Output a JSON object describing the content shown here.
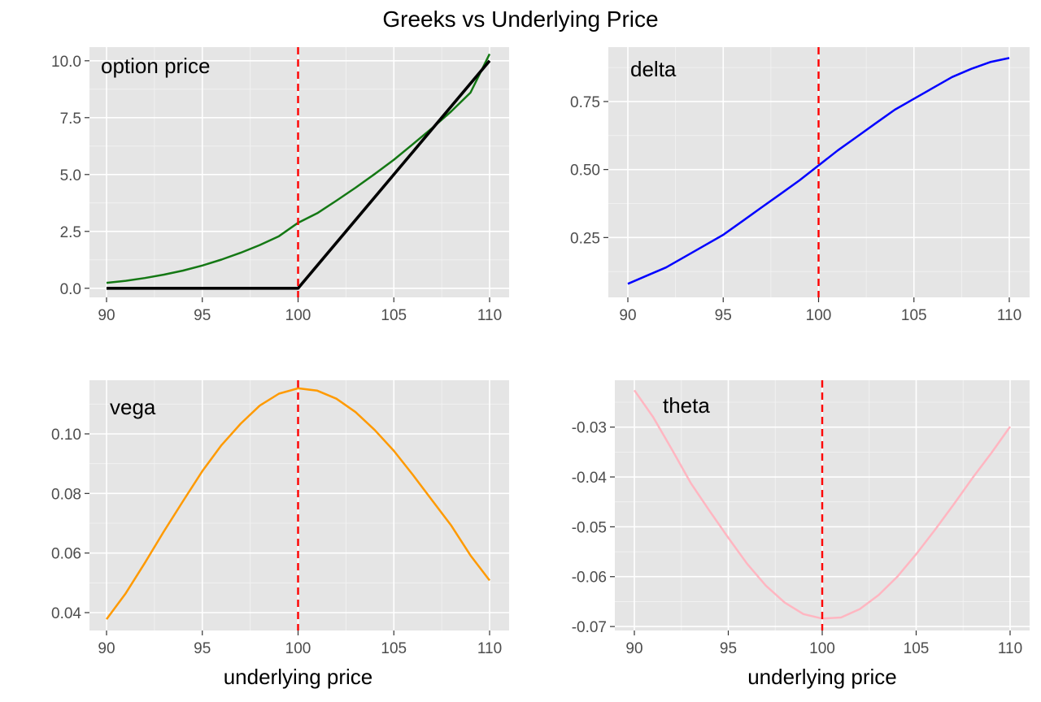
{
  "title": "Greeks vs Underlying Price",
  "colors": {
    "strike_line": "#ff0000",
    "option_price": "#147814",
    "payoff": "#000000",
    "delta": "#0000ff",
    "vega": "#ff9a00",
    "theta": "#ffb6c1"
  },
  "chart_data": [
    {
      "type": "line",
      "label": "option price",
      "xlabel": "",
      "xlim": [
        90,
        110
      ],
      "ylim": [
        -0.4,
        10.6
      ],
      "x_ticks": [
        90,
        95,
        100,
        105,
        110
      ],
      "y_ticks": [
        0,
        2.5,
        5,
        7.5,
        10
      ],
      "y_tick_labels": [
        "0.0",
        "2.5",
        "5.0",
        "7.5",
        "10.0"
      ],
      "vline_x": 100,
      "series": [
        {
          "x": [
            90,
            91,
            92,
            93,
            94,
            95,
            96,
            97,
            98,
            99,
            100,
            101,
            102,
            103,
            104,
            105,
            106,
            107,
            108,
            109,
            110
          ],
          "values": [
            0.24,
            0.33,
            0.45,
            0.6,
            0.78,
            1.0,
            1.26,
            1.56,
            1.9,
            2.29,
            2.88,
            3.3,
            3.85,
            4.42,
            5.02,
            5.65,
            6.34,
            7.04,
            7.78,
            8.6,
            10.3
          ],
          "color": "#147814",
          "width": 2.5
        },
        {
          "x": [
            90,
            100,
            110
          ],
          "values": [
            0,
            0,
            10
          ],
          "color": "#000000",
          "width": 3.6
        }
      ]
    },
    {
      "type": "line",
      "label": "delta",
      "xlabel": "",
      "xlim": [
        90,
        110
      ],
      "ylim": [
        0.03,
        0.95
      ],
      "x_ticks": [
        90,
        95,
        100,
        105,
        110
      ],
      "y_ticks": [
        0.25,
        0.5,
        0.75
      ],
      "y_tick_labels": [
        "0.25",
        "0.50",
        "0.75"
      ],
      "vline_x": 100,
      "series": [
        {
          "x": [
            90,
            91,
            92,
            93,
            94,
            95,
            96,
            97,
            98,
            99,
            100,
            101,
            102,
            103,
            104,
            105,
            106,
            107,
            108,
            109,
            110
          ],
          "values": [
            0.08,
            0.11,
            0.14,
            0.18,
            0.22,
            0.26,
            0.31,
            0.36,
            0.41,
            0.46,
            0.515,
            0.57,
            0.62,
            0.67,
            0.72,
            0.76,
            0.8,
            0.84,
            0.87,
            0.895,
            0.91
          ],
          "color": "#0000ff",
          "width": 2.5
        }
      ]
    },
    {
      "type": "line",
      "label": "vega",
      "xlabel": "underlying price",
      "xlim": [
        90,
        110
      ],
      "ylim": [
        0.034,
        0.118
      ],
      "x_ticks": [
        90,
        95,
        100,
        105,
        110
      ],
      "y_ticks": [
        0.04,
        0.06,
        0.08,
        0.1
      ],
      "y_tick_labels": [
        "0.04",
        "0.06",
        "0.08",
        "0.10"
      ],
      "vline_x": 100,
      "series": [
        {
          "x": [
            90,
            91,
            92,
            93,
            94,
            95,
            96,
            97,
            98,
            99,
            100,
            101,
            102,
            103,
            104,
            105,
            106,
            107,
            108,
            109,
            110
          ],
          "values": [
            0.0378,
            0.0465,
            0.0567,
            0.0673,
            0.0775,
            0.0875,
            0.0962,
            0.1034,
            0.1095,
            0.1135,
            0.1153,
            0.1145,
            0.1118,
            0.1073,
            0.1013,
            0.0943,
            0.0862,
            0.0777,
            0.0692,
            0.0592,
            0.0508
          ],
          "color": "#ff9a00",
          "width": 2.5
        }
      ]
    },
    {
      "type": "line",
      "label": "theta",
      "xlabel": "underlying price",
      "xlim": [
        90,
        110
      ],
      "ylim": [
        -0.0708,
        -0.0206
      ],
      "x_ticks": [
        90,
        95,
        100,
        105,
        110
      ],
      "y_ticks": [
        -0.07,
        -0.06,
        -0.05,
        -0.04,
        -0.03
      ],
      "y_tick_labels": [
        "-0.07",
        "-0.06",
        "-0.05",
        "-0.04",
        "-0.03"
      ],
      "vline_x": 100,
      "series": [
        {
          "x": [
            90,
            91,
            92,
            93,
            94,
            95,
            96,
            97,
            98,
            99,
            100,
            101,
            102,
            103,
            104,
            105,
            106,
            107,
            108,
            109,
            110
          ],
          "values": [
            -0.0226,
            -0.028,
            -0.0345,
            -0.0412,
            -0.0468,
            -0.0522,
            -0.0574,
            -0.0618,
            -0.0652,
            -0.0675,
            -0.0684,
            -0.0682,
            -0.0665,
            -0.0637,
            -0.06,
            -0.0555,
            -0.0506,
            -0.0455,
            -0.0402,
            -0.0352,
            -0.0299
          ],
          "color": "#ffb6c1",
          "width": 2.5
        }
      ]
    }
  ]
}
